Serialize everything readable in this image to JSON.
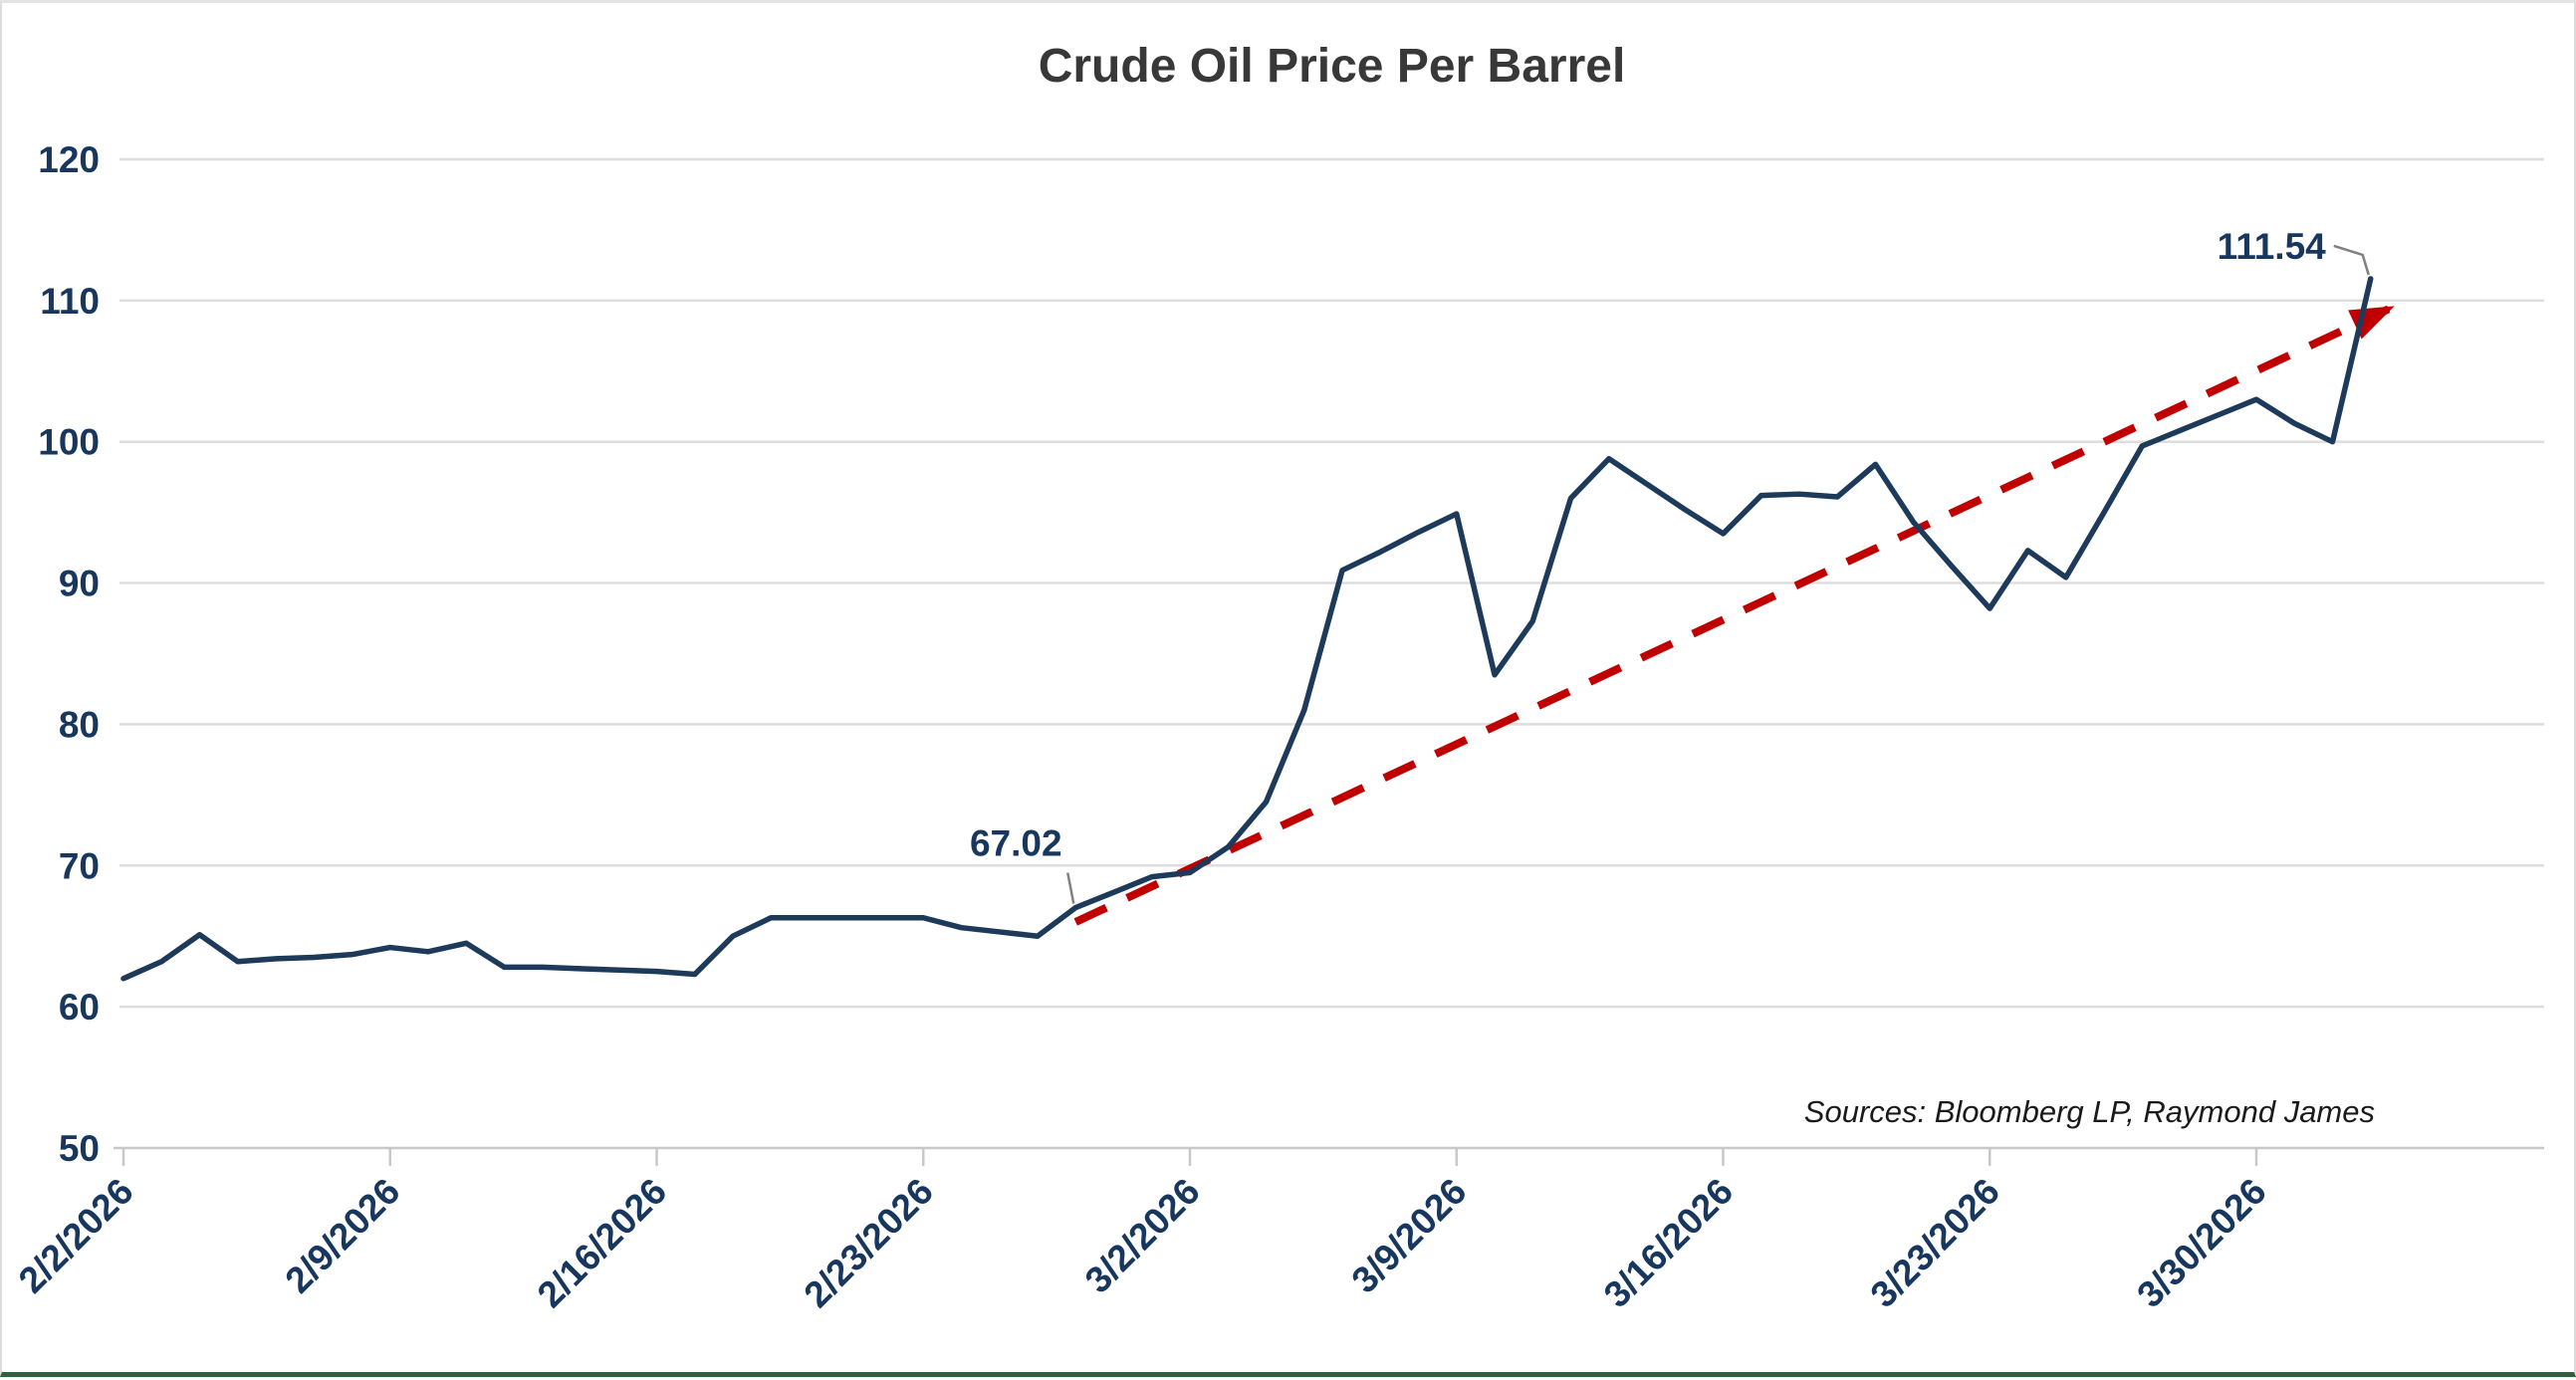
{
  "page": {
    "title": "Crude Oil Price Per Barrel",
    "source_note": "Sources: Bloomberg LP, Raymond James"
  },
  "colors": {
    "series_line": "#1e3a5a",
    "trend_line": "#c00000",
    "axis_text": "#17375e",
    "title_text": "#383838",
    "gridline": "#dddddd",
    "axis_line": "#c8c8c8",
    "leader_line": "#808080",
    "bottom_border": "#2f613f",
    "background": "#ffffff"
  },
  "chart_data": {
    "type": "line",
    "title": "Crude Oil Price Per Barrel",
    "xlabel": "",
    "ylabel": "",
    "ylim": [
      50,
      120
    ],
    "y_ticks": [
      50,
      60,
      70,
      80,
      90,
      100,
      110,
      120
    ],
    "grid": "horizontal",
    "legend_position": "none",
    "x_tick_labels": [
      "2/2/2026",
      "2/9/2026",
      "2/16/2026",
      "2/23/2026",
      "3/2/2026",
      "3/9/2026",
      "3/16/2026",
      "3/23/2026",
      "3/30/2026"
    ],
    "x_tick_indices": [
      0,
      7,
      14,
      21,
      28,
      35,
      42,
      49,
      56
    ],
    "x": [
      "2/2/2026",
      "2/3/2026",
      "2/4/2026",
      "2/5/2026",
      "2/6/2026",
      "2/7/2026",
      "2/8/2026",
      "2/9/2026",
      "2/10/2026",
      "2/11/2026",
      "2/12/2026",
      "2/13/2026",
      "2/14/2026",
      "2/15/2026",
      "2/16/2026",
      "2/17/2026",
      "2/18/2026",
      "2/19/2026",
      "2/20/2026",
      "2/21/2026",
      "2/22/2026",
      "2/23/2026",
      "2/24/2026",
      "2/25/2026",
      "2/26/2026",
      "2/27/2026",
      "2/28/2026",
      "3/1/2026",
      "3/2/2026",
      "3/3/2026",
      "3/4/2026",
      "3/5/2026",
      "3/6/2026",
      "3/7/2026",
      "3/8/2026",
      "3/9/2026",
      "3/10/2026",
      "3/11/2026",
      "3/12/2026",
      "3/13/2026",
      "3/14/2026",
      "3/15/2026",
      "3/16/2026",
      "3/17/2026",
      "3/18/2026",
      "3/19/2026",
      "3/20/2026",
      "3/21/2026",
      "3/22/2026",
      "3/23/2026",
      "3/24/2026",
      "3/25/2026",
      "3/26/2026",
      "3/27/2026",
      "3/28/2026",
      "3/29/2026",
      "3/30/2026",
      "3/31/2026",
      "4/1/2026",
      "4/2/2026"
    ],
    "series": [
      {
        "name": "Crude Oil Price Per Barrel",
        "color": "#1e3a5a",
        "values": [
          62.0,
          63.2,
          65.1,
          63.2,
          63.4,
          63.5,
          63.7,
          64.2,
          63.9,
          64.5,
          62.8,
          62.8,
          62.7,
          62.6,
          62.5,
          62.3,
          65.0,
          66.3,
          66.3,
          66.3,
          66.3,
          66.3,
          65.6,
          65.3,
          65.0,
          67.02,
          68.1,
          69.2,
          69.5,
          71.3,
          74.5,
          81.0,
          90.9,
          92.2,
          93.6,
          94.9,
          83.5,
          87.3,
          96.0,
          98.8,
          97.0,
          95.2,
          93.5,
          96.2,
          96.3,
          96.1,
          98.4,
          94.3,
          91.2,
          88.2,
          92.3,
          90.4,
          95.0,
          99.7,
          100.8,
          101.9,
          103.0,
          101.3,
          100.0,
          111.54
        ]
      }
    ],
    "trend_line": {
      "style": "dashed",
      "color": "#c00000",
      "arrow_at_end": true,
      "start": {
        "date": "2/27/2026",
        "value": 66.0
      },
      "end": {
        "date": "4/2/2026",
        "value": 109.4
      }
    },
    "annotations": [
      {
        "label": "67.02",
        "date": "2/27/2026",
        "value": 67.02
      },
      {
        "label": "111.54",
        "date": "4/2/2026",
        "value": 111.54
      }
    ]
  }
}
